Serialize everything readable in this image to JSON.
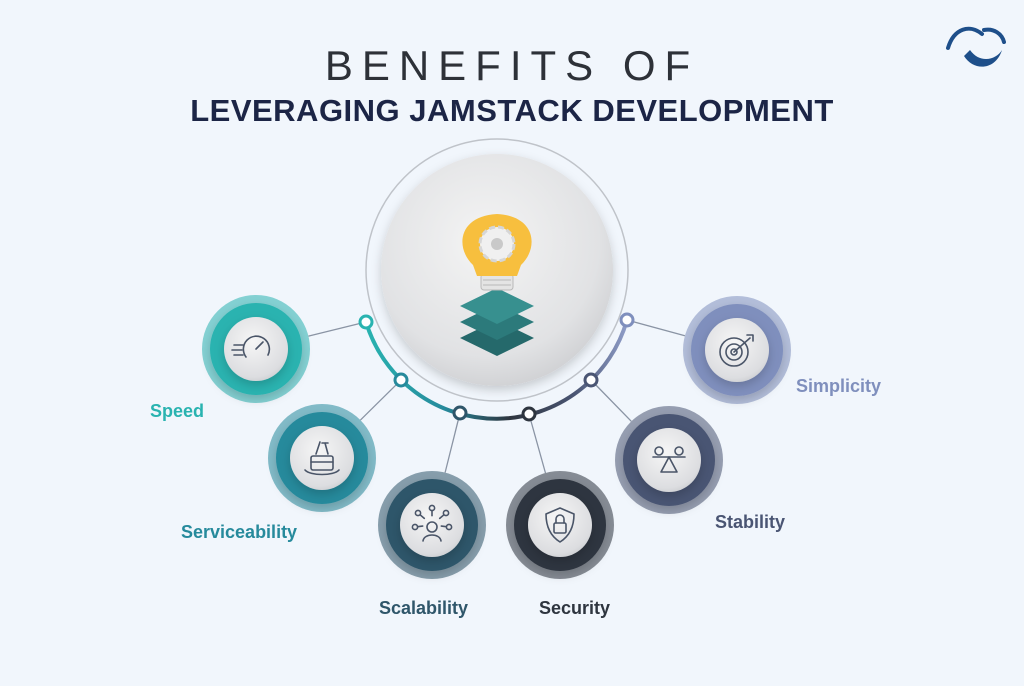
{
  "header": {
    "line1": "BENEFITS OF",
    "line2": "LEVERAGING JAMSTACK DEVELOPMENT"
  },
  "hub": {
    "icon": "lightbulb-gear-layers-icon"
  },
  "benefits": [
    {
      "label": "Speed",
      "icon": "speedometer-icon",
      "color": "#29b3b0"
    },
    {
      "label": "Serviceability",
      "icon": "tools-box-icon",
      "color": "#268a9c"
    },
    {
      "label": "Scalability",
      "icon": "network-user-icon",
      "color": "#2f566a"
    },
    {
      "label": "Security",
      "icon": "shield-lock-icon",
      "color": "#2e353f"
    },
    {
      "label": "Stability",
      "icon": "balance-scale-icon",
      "color": "#4a5573"
    },
    {
      "label": "Simplicity",
      "icon": "target-icon",
      "color": "#7f8fbd"
    }
  ],
  "colors": {
    "background": "#f1f6fc",
    "title_dark": "#2d3138",
    "title_navy": "#1c2546",
    "hub_bulb": "#f7bf3e",
    "hub_layers": "#2c7a7b",
    "logo": "#1e4f8a"
  }
}
